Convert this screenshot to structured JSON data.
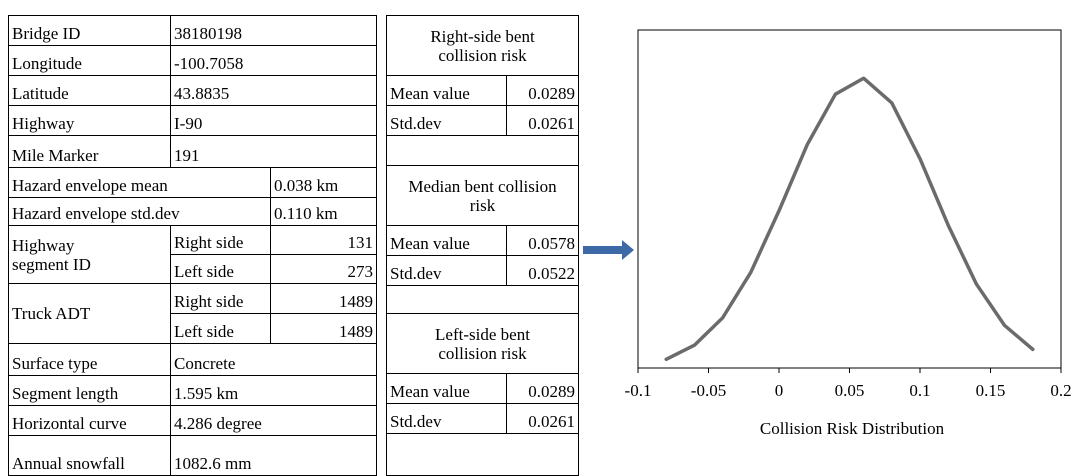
{
  "info_table": {
    "rows": [
      {
        "label": "Bridge ID",
        "value": "38180198"
      },
      {
        "label": "Longitude",
        "value": "-100.7058"
      },
      {
        "label": "Latitude",
        "value": "43.8835"
      },
      {
        "label": "Highway",
        "value": "I-90"
      },
      {
        "label": "Mile Marker",
        "value": "191"
      },
      {
        "label": "Hazard envelope mean",
        "value": "0.038 km"
      },
      {
        "label": "Hazard envelope std.dev",
        "value": "0.110 km"
      },
      {
        "label": "Highway segment ID",
        "parts": [
          {
            "side": "Right side",
            "value": "131"
          },
          {
            "side": "Left side",
            "value": "273"
          }
        ]
      },
      {
        "label": "Truck ADT",
        "parts": [
          {
            "side": "Right side",
            "value": "1489"
          },
          {
            "side": "Left side",
            "value": "1489"
          }
        ]
      },
      {
        "label": "Surface type",
        "value": "Concrete"
      },
      {
        "label": "Segment length",
        "value": "1.595 km"
      },
      {
        "label": "Horizontal curve",
        "value": "4.286 degree"
      },
      {
        "label": "Annual snowfall",
        "value": "1082.6 mm"
      }
    ]
  },
  "risk_table": {
    "groups": [
      {
        "title": "Right-side bent collision risk",
        "mean_label": "Mean value",
        "mean": "0.0289",
        "std_label": "Std.dev",
        "std": "0.0261"
      },
      {
        "title": "Median bent collision risk",
        "mean_label": "Mean value",
        "mean": "0.0578",
        "std_label": "Std.dev",
        "std": "0.0522"
      },
      {
        "title": "Left-side bent collision risk",
        "mean_label": "Mean value",
        "mean": "0.0289",
        "std_label": "Std.dev",
        "std": "0.0261"
      }
    ]
  },
  "chart_data": {
    "type": "line",
    "x_label": "Collision Risk Distribution",
    "x": [
      -0.08,
      -0.06,
      -0.04,
      -0.02,
      0,
      0.02,
      0.04,
      0.06,
      0.08,
      0.1,
      0.12,
      0.14,
      0.16,
      0.18
    ],
    "series": [
      {
        "color": "#6b6b6b",
        "values": [
          0.23,
          0.6,
          1.32,
          2.52,
          4.14,
          5.88,
          7.21,
          7.63,
          6.98,
          5.51,
          3.76,
          2.21,
          1.12,
          0.49
        ]
      }
    ],
    "xlim": [
      -0.1,
      0.2
    ],
    "xticks": [
      -0.1,
      -0.05,
      0,
      0.05,
      0.1,
      0.15,
      0.2
    ],
    "ylim": [
      0,
      8.9
    ]
  }
}
